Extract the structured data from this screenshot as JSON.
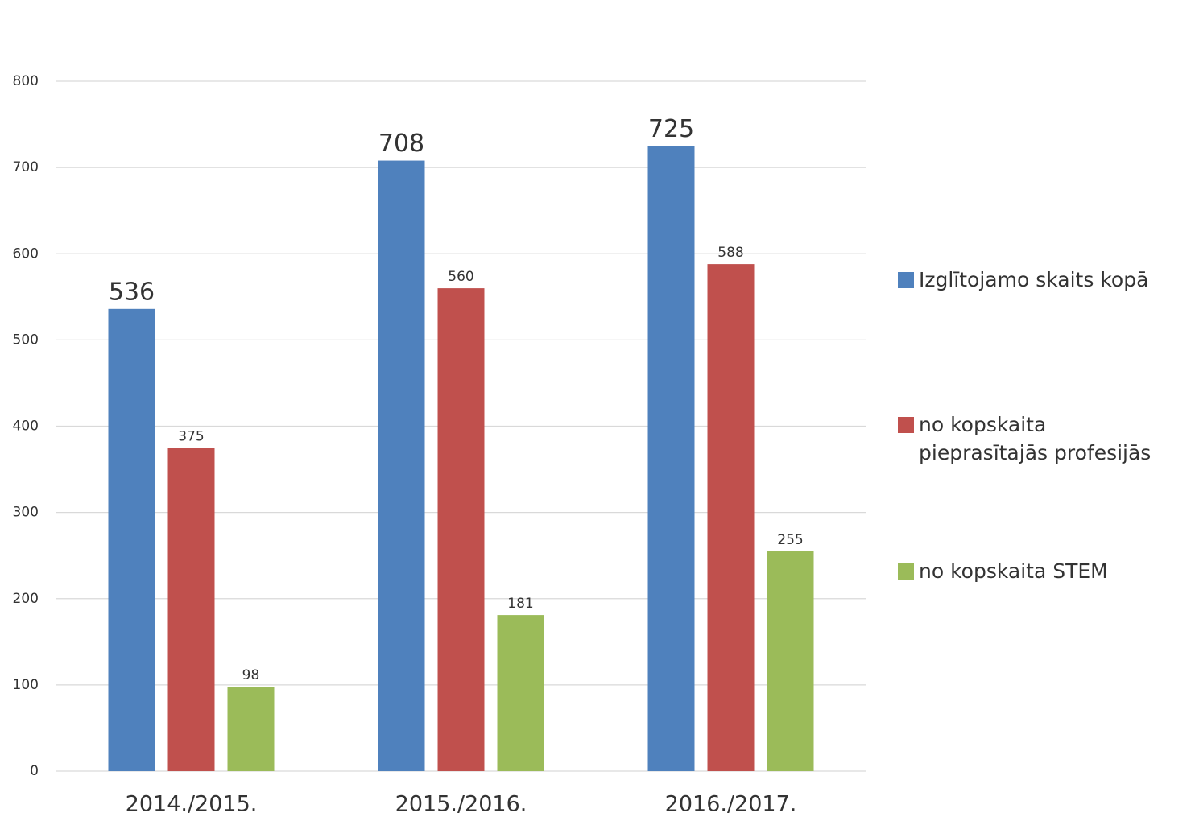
{
  "chart_data": {
    "type": "bar",
    "categories": [
      "2014./2015.",
      "2015./2016.",
      "2016./2017."
    ],
    "series": [
      {
        "name": "Izglītojamo skaits kopā",
        "color": "#4f81bd",
        "values": [
          536,
          708,
          725
        ]
      },
      {
        "name": "no kopskaita pieprasītajās profesijās",
        "color": "#c0504d",
        "values": [
          375,
          560,
          588
        ]
      },
      {
        "name": "no kopskaita STEM",
        "color": "#9bbb59",
        "values": [
          98,
          181,
          255
        ]
      }
    ],
    "ylim": [
      0,
      800
    ],
    "yticks": [
      0,
      100,
      200,
      300,
      400,
      500,
      600,
      700,
      800
    ],
    "grid": true,
    "legend": "right"
  }
}
